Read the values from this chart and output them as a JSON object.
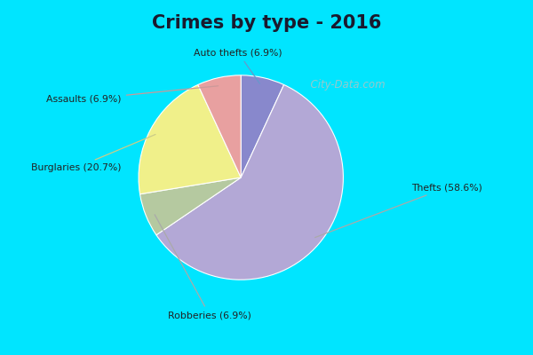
{
  "title": "Crimes by type - 2016",
  "labels": [
    "Auto thefts",
    "Thefts",
    "Robberies",
    "Burglaries",
    "Assaults"
  ],
  "values": [
    6.9,
    58.6,
    6.9,
    20.7,
    6.9
  ],
  "colors": [
    "#8888cc",
    "#b3a8d6",
    "#b5c9a0",
    "#f0f08a",
    "#e8a0a0"
  ],
  "label_texts": [
    "Auto thefts (6.9%)",
    "Thefts (58.6%)",
    "Robberies (6.9%)",
    "Burglaries (20.7%)",
    "Assaults (6.9%)"
  ],
  "line_colors": [
    "#6699cc",
    "#aaaaaa",
    "#aaaaaa",
    "#cccc88",
    "#cc9999"
  ],
  "bg_outer": "#00e5ff",
  "bg_inner": "#d4edd8",
  "title_color": "#1a1a2e",
  "title_fontsize": 15,
  "watermark": "  City-Data.com",
  "watermark_icon": "ⓘ"
}
